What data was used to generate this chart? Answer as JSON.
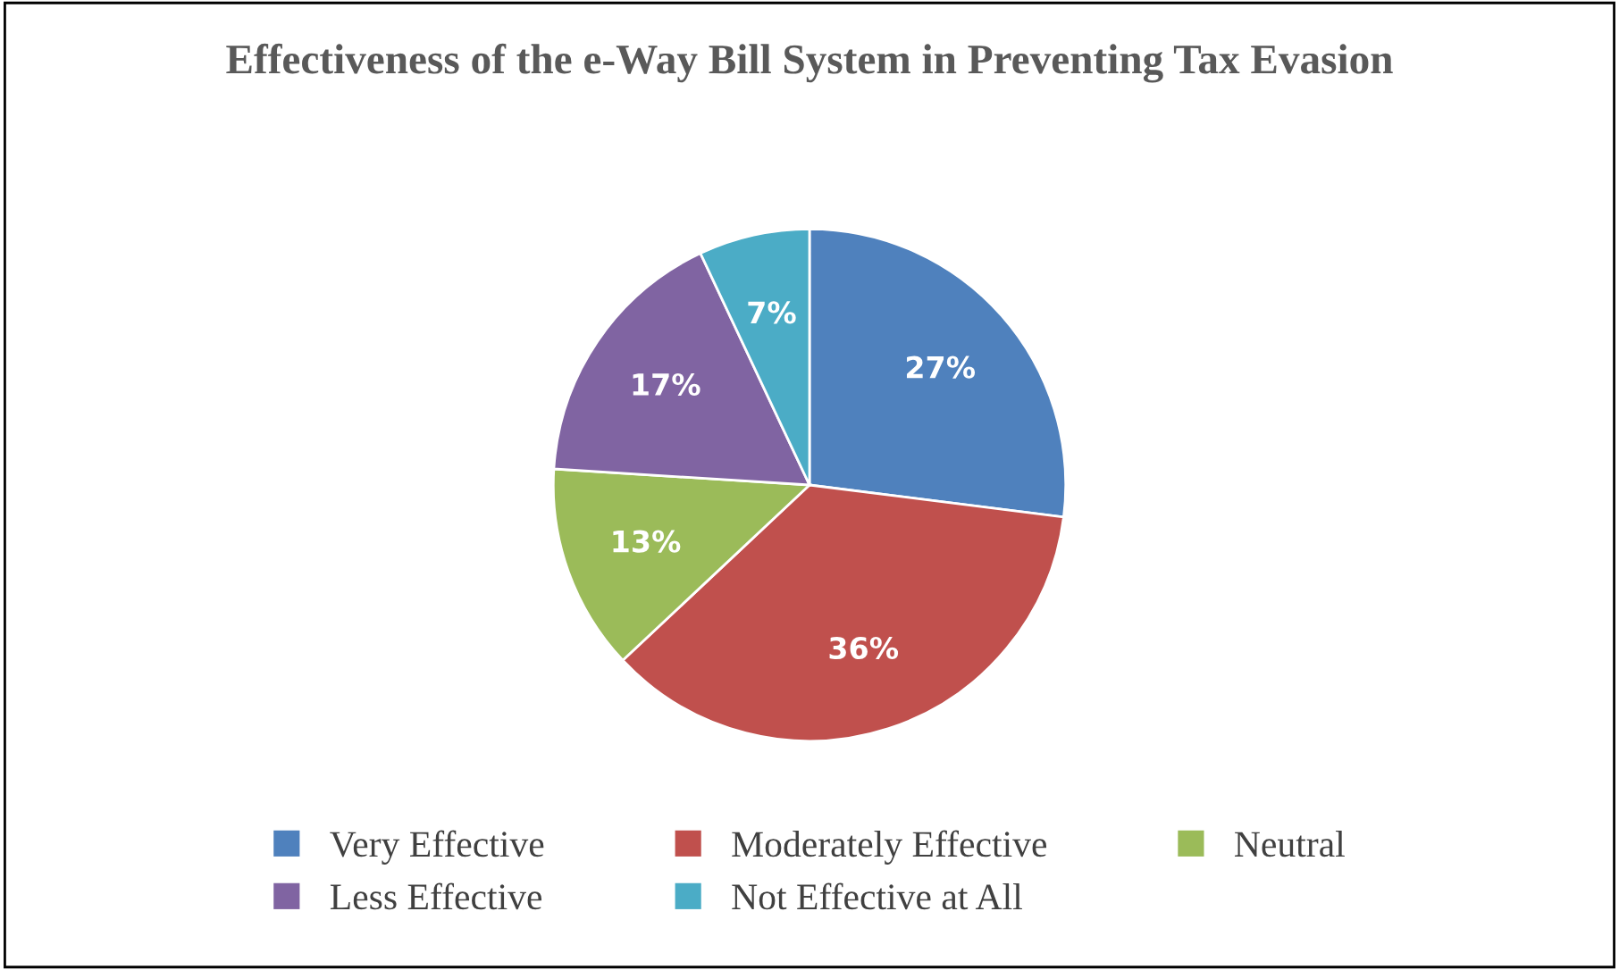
{
  "chart_data": {
    "type": "pie",
    "title": "Effectiveness of the e-Way Bill System in Preventing Tax Evasion",
    "categories": [
      "Very Effective",
      "Moderately Effective",
      "Neutral",
      "Less Effective",
      "Not Effective at All"
    ],
    "values": [
      27,
      36,
      13,
      17,
      7
    ],
    "colors": [
      "#4f81bd",
      "#c0504d",
      "#9bbb59",
      "#8064a2",
      "#4bacc6"
    ],
    "value_labels": [
      "27%",
      "36%",
      "13%",
      "17%",
      "7%"
    ],
    "legend": "bottom"
  }
}
